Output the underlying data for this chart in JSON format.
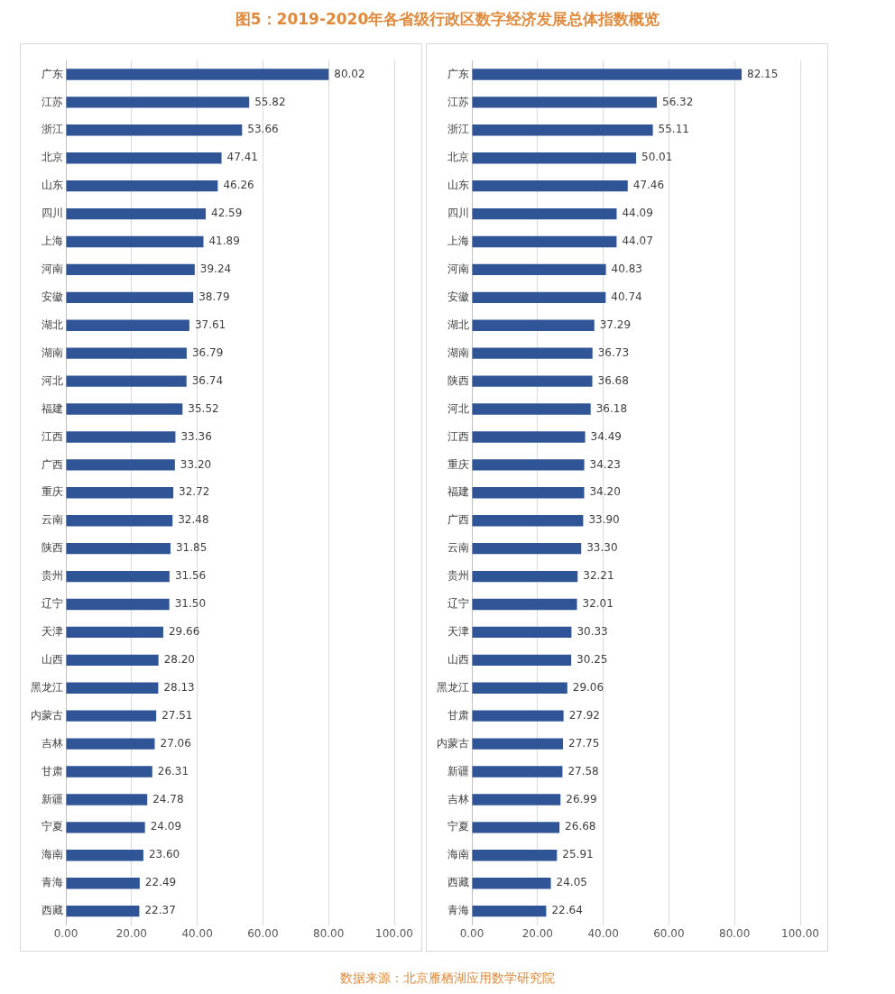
{
  "chart_data": [
    {
      "type": "bar",
      "orientation": "horizontal",
      "title": "图5：2019-2020年各省级行政区数字经济发展总体指数概览",
      "categories": [
        "广东",
        "江苏",
        "浙江",
        "北京",
        "山东",
        "四川",
        "上海",
        "河南",
        "安徽",
        "湖北",
        "湖南",
        "河北",
        "福建",
        "江西",
        "广西",
        "重庆",
        "云南",
        "陕西",
        "贵州",
        "辽宁",
        "天津",
        "山西",
        "黑龙江",
        "内蒙古",
        "吉林",
        "甘肃",
        "新疆",
        "宁夏",
        "海南",
        "青海",
        "西藏"
      ],
      "values": [
        80.02,
        55.82,
        53.66,
        47.41,
        46.26,
        42.59,
        41.89,
        39.24,
        38.79,
        37.61,
        36.79,
        36.74,
        35.52,
        33.36,
        33.2,
        32.72,
        32.48,
        31.85,
        31.56,
        31.5,
        29.66,
        28.2,
        28.13,
        27.51,
        27.06,
        26.31,
        24.78,
        24.09,
        23.6,
        22.49,
        22.37
      ],
      "value_labels": [
        "80.02",
        "55.82",
        "53.66",
        "47.41",
        "46.26",
        "42.59",
        "41.89",
        "39.24",
        "38.79",
        "37.61",
        "36.79",
        "36.74",
        "35.52",
        "33.36",
        "33.20",
        "32.72",
        "32.48",
        "31.85",
        "31.56",
        "31.50",
        "29.66",
        "28.20",
        "28.13",
        "27.51",
        "27.06",
        "26.31",
        "24.78",
        "24.09",
        "23.60",
        "22.49",
        "22.37"
      ],
      "color": "#2f5597",
      "xlim": [
        0,
        100
      ],
      "xticks": [
        {
          "value": 0,
          "label": "0.00"
        },
        {
          "value": 20,
          "label": "20.00"
        },
        {
          "value": 40,
          "label": "40.00"
        },
        {
          "value": 60,
          "label": "60.00"
        },
        {
          "value": 80,
          "label": "80.00"
        },
        {
          "value": 100,
          "label": "100.00"
        }
      ],
      "grid": "x",
      "legend": false
    },
    {
      "type": "bar",
      "orientation": "horizontal",
      "categories": [
        "广东",
        "江苏",
        "浙江",
        "北京",
        "山东",
        "四川",
        "上海",
        "河南",
        "安徽",
        "湖北",
        "湖南",
        "陕西",
        "河北",
        "江西",
        "重庆",
        "福建",
        "广西",
        "云南",
        "贵州",
        "辽宁",
        "天津",
        "山西",
        "黑龙江",
        "甘肃",
        "内蒙古",
        "新疆",
        "吉林",
        "宁夏",
        "海南",
        "西藏",
        "青海"
      ],
      "values": [
        82.15,
        56.32,
        55.11,
        50.01,
        47.46,
        44.09,
        44.07,
        40.83,
        40.74,
        37.29,
        36.73,
        36.68,
        36.18,
        34.49,
        34.23,
        34.2,
        33.9,
        33.3,
        32.21,
        32.01,
        30.33,
        30.25,
        29.06,
        27.92,
        27.75,
        27.58,
        26.99,
        26.68,
        25.91,
        24.05,
        22.64
      ],
      "value_labels": [
        "82.15",
        "56.32",
        "55.11",
        "50.01",
        "47.46",
        "44.09",
        "44.07",
        "40.83",
        "40.74",
        "37.29",
        "36.73",
        "36.68",
        "36.18",
        "34.49",
        "34.23",
        "34.20",
        "33.90",
        "33.30",
        "32.21",
        "32.01",
        "30.33",
        "30.25",
        "29.06",
        "27.92",
        "27.75",
        "27.58",
        "26.99",
        "26.68",
        "25.91",
        "24.05",
        "22.64"
      ],
      "color": "#2f5597",
      "xlim": [
        0,
        100
      ],
      "xticks": [
        {
          "value": 0,
          "label": "0.00"
        },
        {
          "value": 20,
          "label": "20.00"
        },
        {
          "value": 40,
          "label": "40.00"
        },
        {
          "value": 60,
          "label": "60.00"
        },
        {
          "value": 80,
          "label": "80.00"
        },
        {
          "value": 100,
          "label": "100.00"
        }
      ],
      "grid": "x",
      "legend": false,
      "annotations": [
        "数据来源：北京雁栖湖应用数学研究院"
      ]
    }
  ]
}
